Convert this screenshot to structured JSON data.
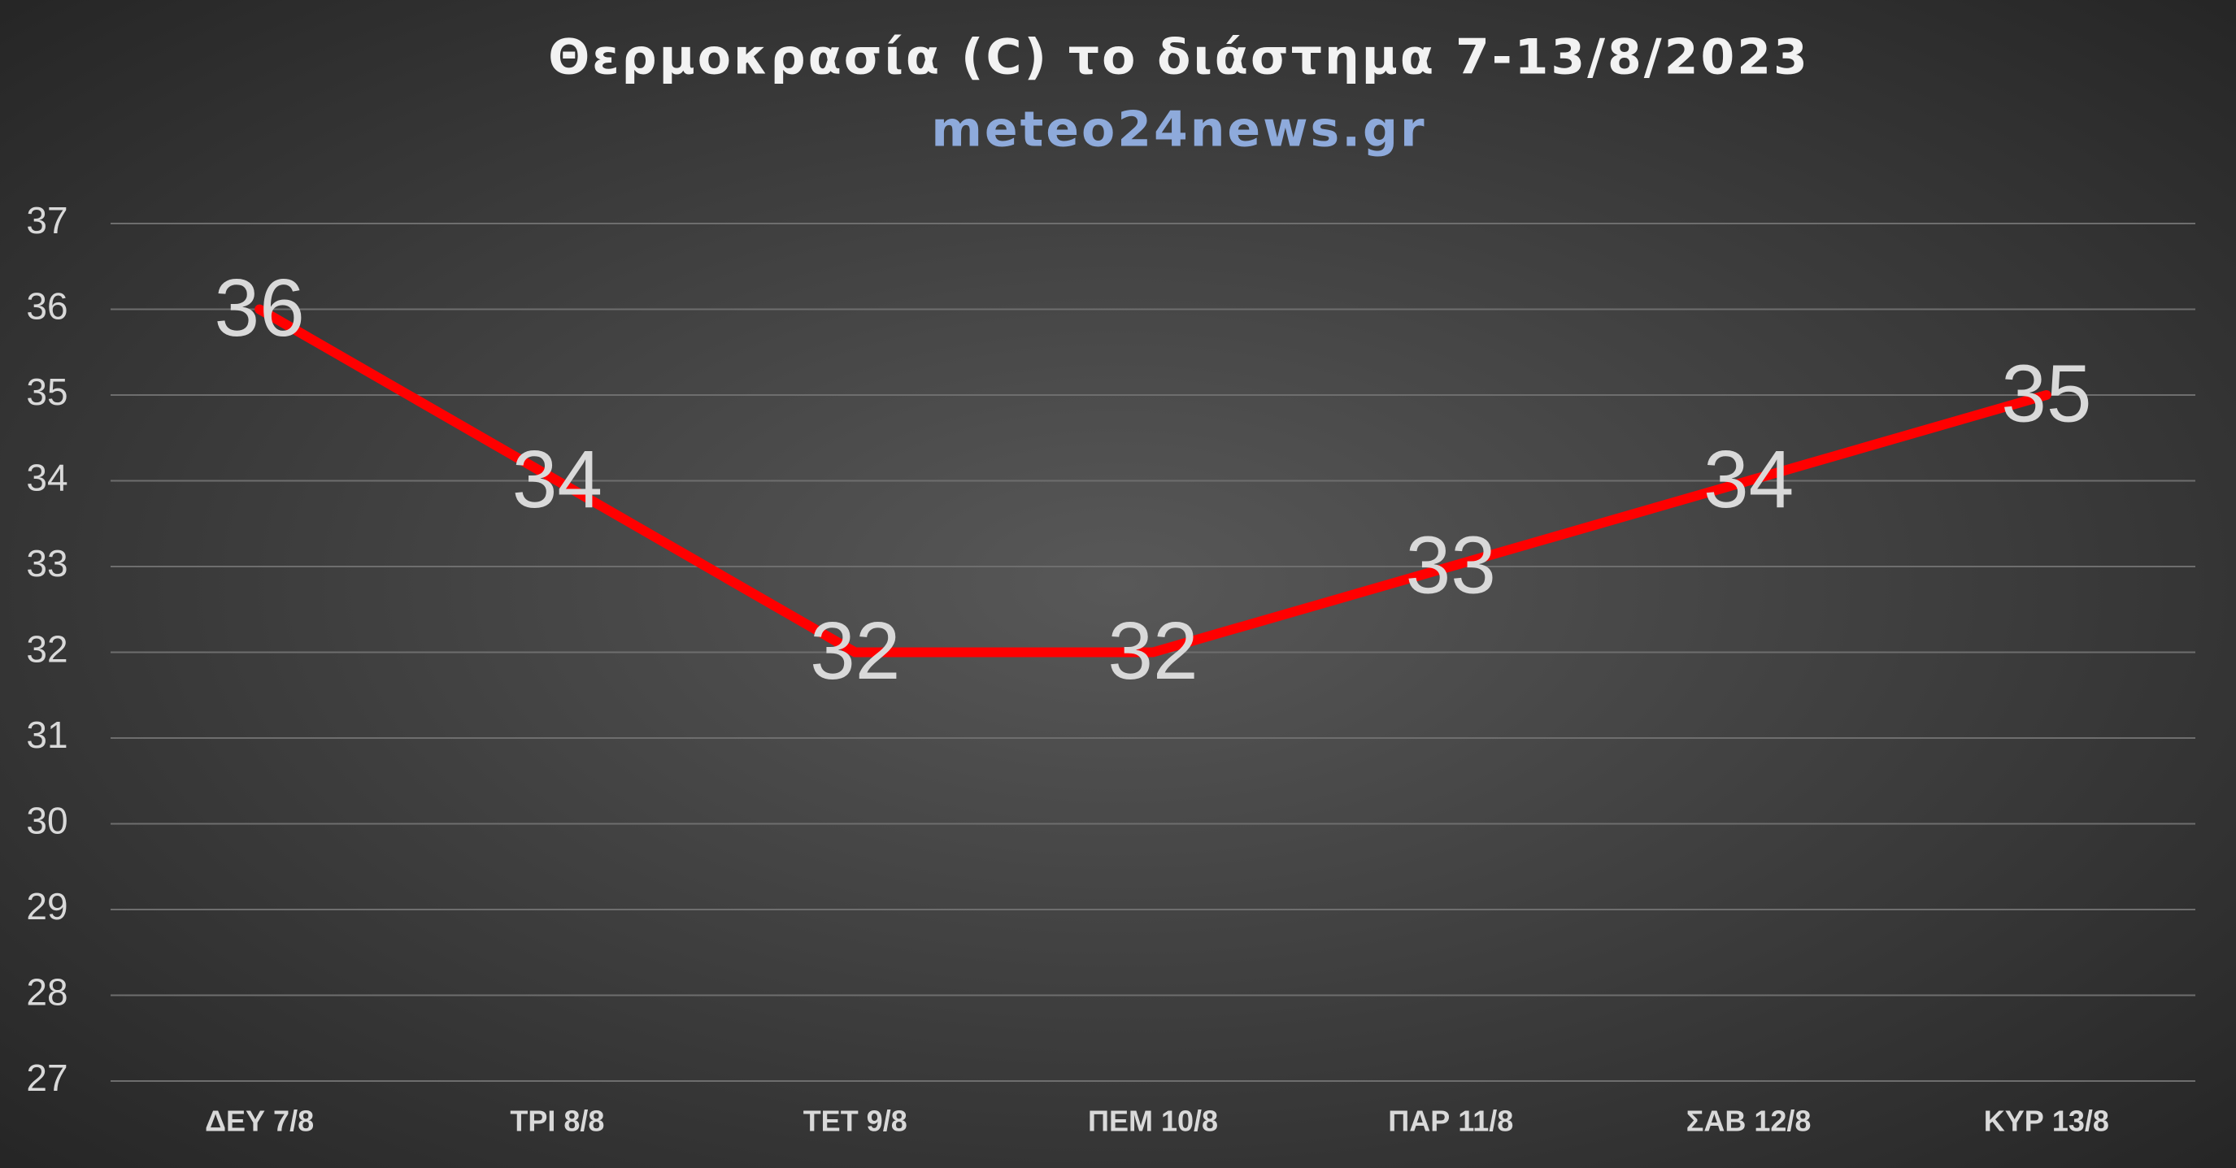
{
  "chart_data": {
    "type": "line",
    "title": "Θερμοκρασία (C) το διάστημα 7-13/8/2023",
    "subtitle": "meteo24news.gr",
    "categories": [
      "ΔΕΥ 7/8",
      "ΤΡΙ 8/8",
      "ΤΕΤ 9/8",
      "ΠΕΜ 10/8",
      "ΠΑΡ 11/8",
      "ΣΑΒ 12/8",
      "ΚΥΡ 13/8"
    ],
    "values": [
      36,
      34,
      32,
      32,
      33,
      34,
      35
    ],
    "color": "#ff0000",
    "ylim": [
      27,
      37
    ],
    "yticks": [
      27,
      28,
      29,
      30,
      31,
      32,
      33,
      34,
      35,
      36,
      37
    ],
    "grid": true
  }
}
